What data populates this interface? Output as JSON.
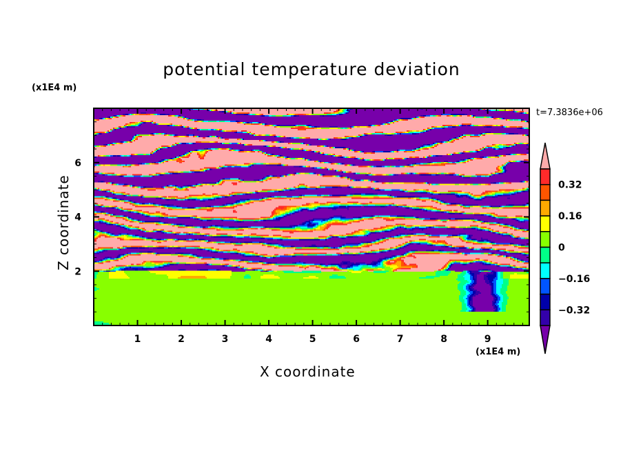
{
  "chart_data": {
    "type": "heatmap",
    "title": "potential temperature deviation",
    "xlabel": "X coordinate",
    "ylabel": "Z coordinate",
    "x_unit": "(x1E4 m)",
    "y_unit": "(x1E4 m)",
    "xlim": [
      0,
      9.95
    ],
    "ylim": [
      0,
      8
    ],
    "x_ticks": [
      1,
      2,
      3,
      4,
      5,
      6,
      7,
      8,
      9
    ],
    "y_ticks": [
      2,
      4,
      6
    ],
    "annotation": "t=7.3836e+06",
    "colorbar": {
      "levels": [
        -0.4,
        -0.32,
        -0.24,
        -0.16,
        -0.08,
        0,
        0.08,
        0.16,
        0.24,
        0.32,
        0.4
      ],
      "labels": [
        "0.32",
        "0.16",
        "0",
        "-0.16",
        "-0.32"
      ],
      "label_values": [
        0.32,
        0.16,
        0,
        -0.16,
        -0.32
      ],
      "colors": [
        "#3300aa",
        "#0000aa",
        "#0055ff",
        "#00ffff",
        "#00ff88",
        "#88ff00",
        "#ffff00",
        "#ffaa00",
        "#ff5500",
        "#ff2a2a"
      ],
      "over_color": "#ffaaaa",
      "under_color": "#7700aa",
      "extend": "both"
    }
  }
}
